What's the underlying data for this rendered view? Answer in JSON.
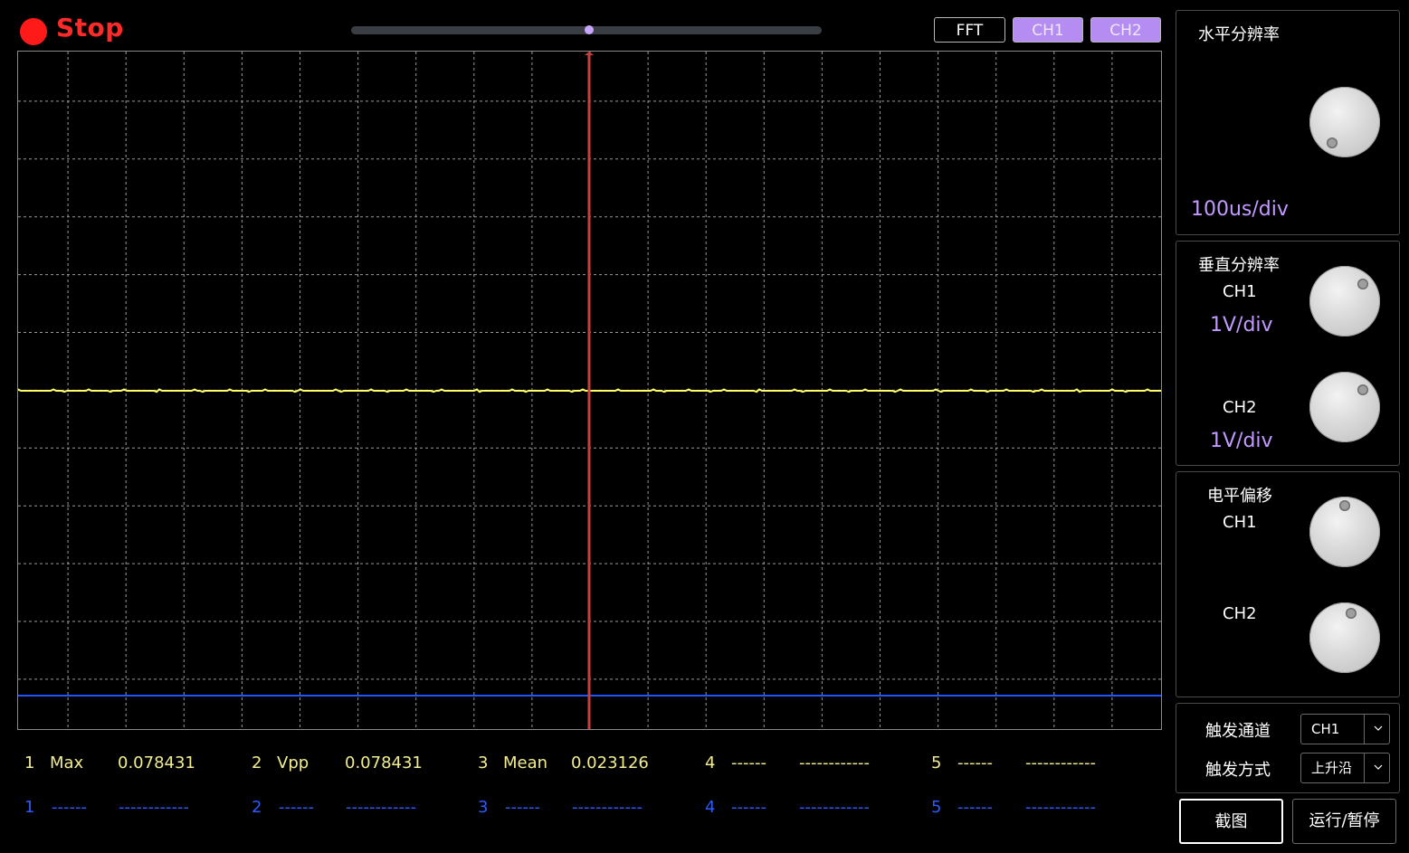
{
  "status": {
    "label": "Stop",
    "color": "#ff1a1a"
  },
  "top_buttons": {
    "fft": "FFT",
    "ch1": "CH1",
    "ch2": "CH2"
  },
  "colors": {
    "ch1_trace": "#ffff66",
    "ch2_trace": "#2255ff",
    "trigger_line": "#c8403c",
    "accent": "#b48cf2"
  },
  "screen": {
    "grid_divisions_x": 20,
    "grid_divisions_y": 12
  },
  "measurements": {
    "ch1_row": [
      {
        "n": "1",
        "name": "Max",
        "value": "0.078431"
      },
      {
        "n": "2",
        "name": "Vpp",
        "value": "0.078431"
      },
      {
        "n": "3",
        "name": "Mean",
        "value": "0.023126"
      },
      {
        "n": "4",
        "name": "------",
        "value": "------------"
      },
      {
        "n": "5",
        "name": "------",
        "value": "------------"
      }
    ],
    "ch2_row": [
      {
        "n": "1",
        "name": "------",
        "value": "------------"
      },
      {
        "n": "2",
        "name": "------",
        "value": "------------"
      },
      {
        "n": "3",
        "name": "------",
        "value": "------------"
      },
      {
        "n": "4",
        "name": "------",
        "value": "------------"
      },
      {
        "n": "5",
        "name": "------",
        "value": "------------"
      }
    ]
  },
  "horizontal": {
    "title": "水平分辨率",
    "value": "100us/div",
    "knob_icon": "knob-icon"
  },
  "vertical": {
    "title": "垂直分辨率",
    "ch1_label": "CH1",
    "ch1_value": "1V/div",
    "ch2_label": "CH2",
    "ch2_value": "1V/div"
  },
  "offset": {
    "title": "电平偏移",
    "ch1_label": "CH1",
    "ch2_label": "CH2"
  },
  "trigger": {
    "channel_label": "触发通道",
    "channel_value": "CH1",
    "mode_label": "触发方式",
    "mode_value": "上升沿"
  },
  "actions": {
    "screenshot": "截图",
    "run_pause": "运行/暂停"
  }
}
